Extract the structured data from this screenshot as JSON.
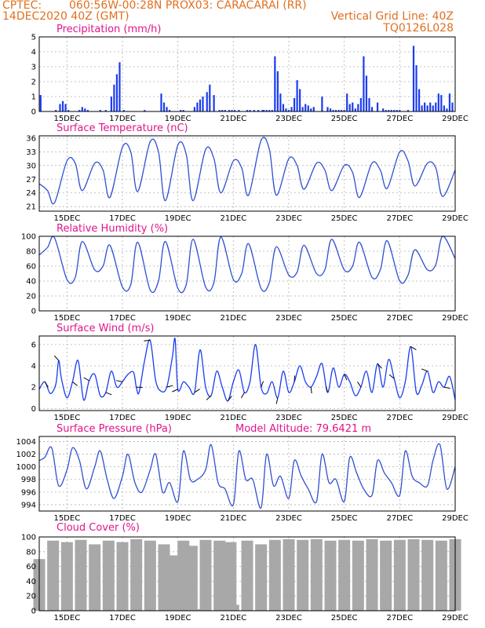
{
  "header": {
    "source": "CPTEC:",
    "location": "060:56W-00:28N   PROX03: CARACARAI (RR)",
    "init_time": "14DEC2020 40Z (GMT)",
    "grid_note": "Vertical Grid Line: 40Z",
    "model_code": "TQ0126L028"
  },
  "x_axis": {
    "tick_labels": [
      "15DEC",
      "17DEC",
      "19DEC",
      "21DEC",
      "23DEC",
      "25DEC",
      "27DEC",
      "29DEC"
    ],
    "tick_days": [
      15,
      17,
      19,
      21,
      23,
      25,
      27,
      29
    ],
    "range_days": [
      14,
      29
    ]
  },
  "chart_data": [
    {
      "id": "precip",
      "type": "bar",
      "title": "Precipitation (mm/h)",
      "ylim": [
        0,
        5
      ],
      "yticks": [
        0,
        1,
        2,
        3,
        4,
        5
      ],
      "grid": true,
      "color": "#1a3cf0",
      "x_day": [
        14.05,
        14.6,
        14.75,
        14.85,
        14.95,
        15.05,
        15.45,
        15.55,
        15.65,
        15.75,
        16.2,
        16.4,
        16.6,
        16.7,
        16.8,
        16.9,
        17.05,
        17.8,
        18.4,
        18.5,
        18.6,
        18.7,
        19.1,
        19.2,
        19.6,
        19.7,
        19.8,
        19.9,
        20.05,
        20.15,
        20.3,
        20.5,
        20.6,
        20.7,
        20.85,
        20.95,
        21.05,
        21.2,
        21.5,
        21.6,
        21.75,
        21.9,
        22.05,
        22.1,
        22.2,
        22.3,
        22.4,
        22.5,
        22.6,
        22.7,
        22.8,
        22.9,
        23.0,
        23.1,
        23.2,
        23.3,
        23.4,
        23.5,
        23.6,
        23.7,
        23.8,
        23.9,
        24.2,
        24.4,
        24.5,
        24.6,
        24.7,
        24.8,
        24.9,
        25.0,
        25.1,
        25.2,
        25.3,
        25.4,
        25.5,
        25.6,
        25.7,
        25.8,
        25.9,
        26.0,
        26.2,
        26.4,
        26.5,
        26.6,
        26.7,
        26.8,
        26.9,
        27.0,
        27.3,
        27.5,
        27.6,
        27.7,
        27.8,
        27.9,
        28.0,
        28.1,
        28.2,
        28.3,
        28.4,
        28.5,
        28.6,
        28.7,
        28.8,
        28.9
      ],
      "values": [
        1.1,
        0.1,
        0.5,
        0.7,
        0.5,
        0.1,
        0.1,
        0.3,
        0.2,
        0.1,
        0.1,
        0.1,
        1.0,
        1.8,
        2.5,
        3.3,
        0.1,
        0.1,
        1.2,
        0.6,
        0.3,
        0.1,
        0.1,
        0.1,
        0.3,
        0.6,
        0.8,
        1.0,
        1.3,
        1.8,
        1.1,
        0.1,
        0.1,
        0.1,
        0.1,
        0.1,
        0.1,
        0.1,
        0.1,
        0.1,
        0.1,
        0.1,
        0.1,
        0.1,
        0.1,
        0.1,
        0.1,
        3.7,
        2.7,
        1.2,
        0.5,
        0.2,
        0.1,
        0.3,
        0.9,
        2.1,
        1.5,
        0.3,
        0.5,
        0.4,
        0.2,
        0.3,
        1.0,
        0.3,
        0.2,
        0.1,
        0.1,
        0.1,
        0.1,
        0.1,
        1.2,
        0.5,
        0.6,
        0.2,
        0.5,
        0.9,
        3.7,
        2.4,
        0.9,
        0.3,
        0.6,
        0.2,
        0.1,
        0.1,
        0.1,
        0.1,
        0.1,
        0.1,
        0.1,
        4.4,
        3.1,
        1.5,
        0.4,
        0.6,
        0.4,
        0.6,
        0.4,
        0.6,
        1.2,
        1.1,
        0.4,
        0.2,
        1.2,
        0.6
      ]
    },
    {
      "id": "temperature",
      "type": "line",
      "title": "Surface Temperature (nC)",
      "ylim": [
        20,
        36.5
      ],
      "yticks": [
        21,
        24,
        27,
        30,
        33,
        36
      ],
      "grid": true,
      "color": "#3050d0",
      "x_day": [
        14.0,
        14.3,
        14.55,
        15.0,
        15.3,
        15.55,
        16.0,
        16.3,
        16.55,
        17.0,
        17.3,
        17.55,
        18.0,
        18.3,
        18.55,
        19.0,
        19.3,
        19.55,
        20.0,
        20.3,
        20.55,
        21.0,
        21.3,
        21.55,
        22.0,
        22.3,
        22.55,
        23.0,
        23.3,
        23.55,
        24.0,
        24.3,
        24.55,
        25.0,
        25.3,
        25.55,
        26.0,
        26.3,
        26.55,
        27.0,
        27.3,
        27.55,
        28.0,
        28.3,
        28.55,
        29.0
      ],
      "values": [
        26,
        24.5,
        21.8,
        31,
        30.5,
        24.5,
        30.5,
        29,
        23,
        34,
        33,
        24.3,
        35.2,
        33,
        22.3,
        34.5,
        32.5,
        22.3,
        33.5,
        31.5,
        24,
        31,
        29.5,
        23.5,
        35.5,
        33.5,
        23.5,
        31.5,
        30,
        24.8,
        30.5,
        29,
        24.5,
        30,
        28.5,
        23,
        30.5,
        29,
        25,
        33,
        31,
        25.5,
        30.5,
        29.5,
        23.2,
        29
      ]
    },
    {
      "id": "humidity",
      "type": "line",
      "title": "Relative Humidity (%)",
      "ylim": [
        0,
        100
      ],
      "yticks": [
        0,
        20,
        40,
        60,
        80,
        100
      ],
      "grid": true,
      "color": "#3050d0",
      "x_day": [
        14.0,
        14.3,
        14.55,
        15.0,
        15.3,
        15.55,
        16.0,
        16.3,
        16.55,
        17.0,
        17.3,
        17.55,
        18.0,
        18.3,
        18.55,
        19.0,
        19.3,
        19.55,
        20.0,
        20.3,
        20.55,
        21.0,
        21.3,
        21.55,
        22.0,
        22.3,
        22.55,
        23.0,
        23.3,
        23.55,
        24.0,
        24.3,
        24.55,
        25.0,
        25.3,
        25.55,
        26.0,
        26.3,
        26.55,
        27.0,
        27.3,
        27.55,
        28.0,
        28.3,
        28.55,
        29.0
      ],
      "values": [
        75,
        85,
        98,
        42,
        45,
        93,
        55,
        60,
        88,
        32,
        35,
        92,
        28,
        40,
        93,
        30,
        35,
        96,
        32,
        38,
        99,
        42,
        50,
        90,
        30,
        38,
        86,
        48,
        52,
        88,
        50,
        55,
        96,
        55,
        60,
        92,
        45,
        55,
        94,
        40,
        48,
        82,
        55,
        62,
        100,
        70
      ]
    },
    {
      "id": "wind",
      "type": "line",
      "title": "Surface Wind (m/s)",
      "ylim": [
        -0.2,
        6.8
      ],
      "yticks": [
        0,
        2,
        4,
        6
      ],
      "grid": true,
      "color": "#1a3cf0",
      "x_day": [
        14.0,
        14.2,
        14.4,
        14.6,
        14.7,
        14.8,
        15.0,
        15.2,
        15.4,
        15.6,
        15.8,
        16.0,
        16.2,
        16.4,
        16.6,
        16.8,
        17.0,
        17.2,
        17.4,
        17.5,
        17.6,
        17.8,
        18.0,
        18.2,
        18.4,
        18.6,
        18.8,
        18.9,
        19.0,
        19.2,
        19.4,
        19.6,
        19.8,
        20.0,
        20.2,
        20.4,
        20.6,
        20.8,
        21.0,
        21.2,
        21.4,
        21.6,
        21.8,
        22.0,
        22.2,
        22.4,
        22.6,
        22.8,
        23.0,
        23.2,
        23.4,
        23.6,
        23.8,
        24.0,
        24.2,
        24.4,
        24.6,
        24.8,
        25.0,
        25.2,
        25.4,
        25.6,
        25.8,
        26.0,
        26.2,
        26.4,
        26.6,
        26.8,
        27.0,
        27.2,
        27.4,
        27.6,
        27.8,
        28.0,
        28.2,
        28.4,
        28.6,
        28.8,
        29.0
      ],
      "values": [
        1.8,
        2.5,
        1.4,
        2.3,
        4.5,
        2.8,
        1.0,
        2.5,
        4.5,
        0.8,
        2.6,
        3.2,
        1.2,
        1.5,
        3.5,
        2.0,
        2.5,
        3.2,
        3.4,
        2.0,
        1.5,
        4.5,
        6.4,
        2.6,
        1.6,
        2.0,
        4.8,
        6.5,
        1.8,
        2.5,
        2.0,
        1.5,
        5.5,
        2.0,
        1.2,
        3.5,
        2.0,
        0.7,
        2.5,
        3.6,
        1.5,
        2.5,
        6.0,
        2.0,
        1.4,
        2.5,
        1.0,
        3.5,
        1.5,
        2.5,
        4.0,
        2.5,
        2.0,
        3.0,
        4.2,
        1.5,
        3.8,
        2.0,
        3.2,
        2.5,
        1.2,
        2.0,
        3.5,
        1.5,
        4.2,
        2.0,
        4.6,
        2.8,
        1.0,
        2.5,
        5.8,
        1.5,
        2.2,
        3.5,
        1.5,
        2.5,
        2.0,
        3.0,
        0.8
      ]
    },
    {
      "id": "pressure",
      "type": "line",
      "title": "Surface Pressure (hPa)",
      "annotation": "Model Altitude: 79.6421 m",
      "ylim": [
        993,
        1004.8
      ],
      "yticks": [
        994,
        996,
        998,
        1000,
        1002,
        1004
      ],
      "grid": true,
      "color": "#3050d0",
      "x_day": [
        14.0,
        14.2,
        14.45,
        14.7,
        15.0,
        15.2,
        15.45,
        15.7,
        16.0,
        16.2,
        16.45,
        16.7,
        17.0,
        17.2,
        17.45,
        17.7,
        18.0,
        18.2,
        18.45,
        18.7,
        19.0,
        19.2,
        19.45,
        19.7,
        20.0,
        20.2,
        20.45,
        20.7,
        21.0,
        21.2,
        21.45,
        21.7,
        22.0,
        22.2,
        22.45,
        22.7,
        23.0,
        23.2,
        23.45,
        23.7,
        24.0,
        24.2,
        24.45,
        24.7,
        25.0,
        25.2,
        25.45,
        25.7,
        26.0,
        26.2,
        26.45,
        26.7,
        27.0,
        27.2,
        27.45,
        27.7,
        28.0,
        28.2,
        28.45,
        28.7,
        29.0
      ],
      "values": [
        1001,
        1001.5,
        1003,
        997,
        999.5,
        1003,
        1001,
        996.5,
        1000,
        1002.5,
        998,
        995,
        998.5,
        1002,
        997.5,
        996,
        999.5,
        1002,
        996,
        997.5,
        994.5,
        1002.5,
        998,
        998,
        999.5,
        1003.5,
        997.5,
        996.5,
        994,
        1002.5,
        998,
        998,
        993.5,
        1002,
        997,
        998.5,
        995,
        1001,
        998.5,
        996.5,
        994.5,
        1002,
        997.5,
        998,
        994.5,
        1001.5,
        999,
        996.5,
        995.5,
        1001,
        999,
        997.5,
        995.5,
        1002.5,
        998.5,
        997.5,
        997,
        1001,
        1003.5,
        996.5,
        1000
      ]
    },
    {
      "id": "cloud",
      "type": "bar",
      "title": "Cloud Cover (%)",
      "ylim": [
        0,
        100
      ],
      "yticks": [
        0,
        20,
        40,
        60,
        80,
        100
      ],
      "grid": true,
      "color": "#a8a8a8",
      "x_day": [
        14.0,
        14.5,
        15.0,
        15.5,
        16.0,
        16.5,
        17.0,
        17.5,
        18.0,
        18.5,
        18.8,
        19.0,
        19.2,
        19.5,
        19.8,
        20.0,
        20.5,
        20.9,
        21.0,
        21.5,
        22.0,
        22.5,
        23.0,
        23.5,
        24.0,
        24.5,
        25.0,
        25.5,
        26.0,
        26.5,
        27.0,
        27.5,
        28.0,
        28.5,
        29.0
      ],
      "values": [
        70,
        95,
        93,
        96,
        90,
        95,
        93,
        97,
        95,
        90,
        75,
        25,
        95,
        88,
        2,
        96,
        95,
        93,
        8,
        95,
        90,
        96,
        97,
        96,
        97,
        95,
        96,
        95,
        97,
        95,
        96,
        97,
        96,
        95,
        97
      ]
    }
  ]
}
